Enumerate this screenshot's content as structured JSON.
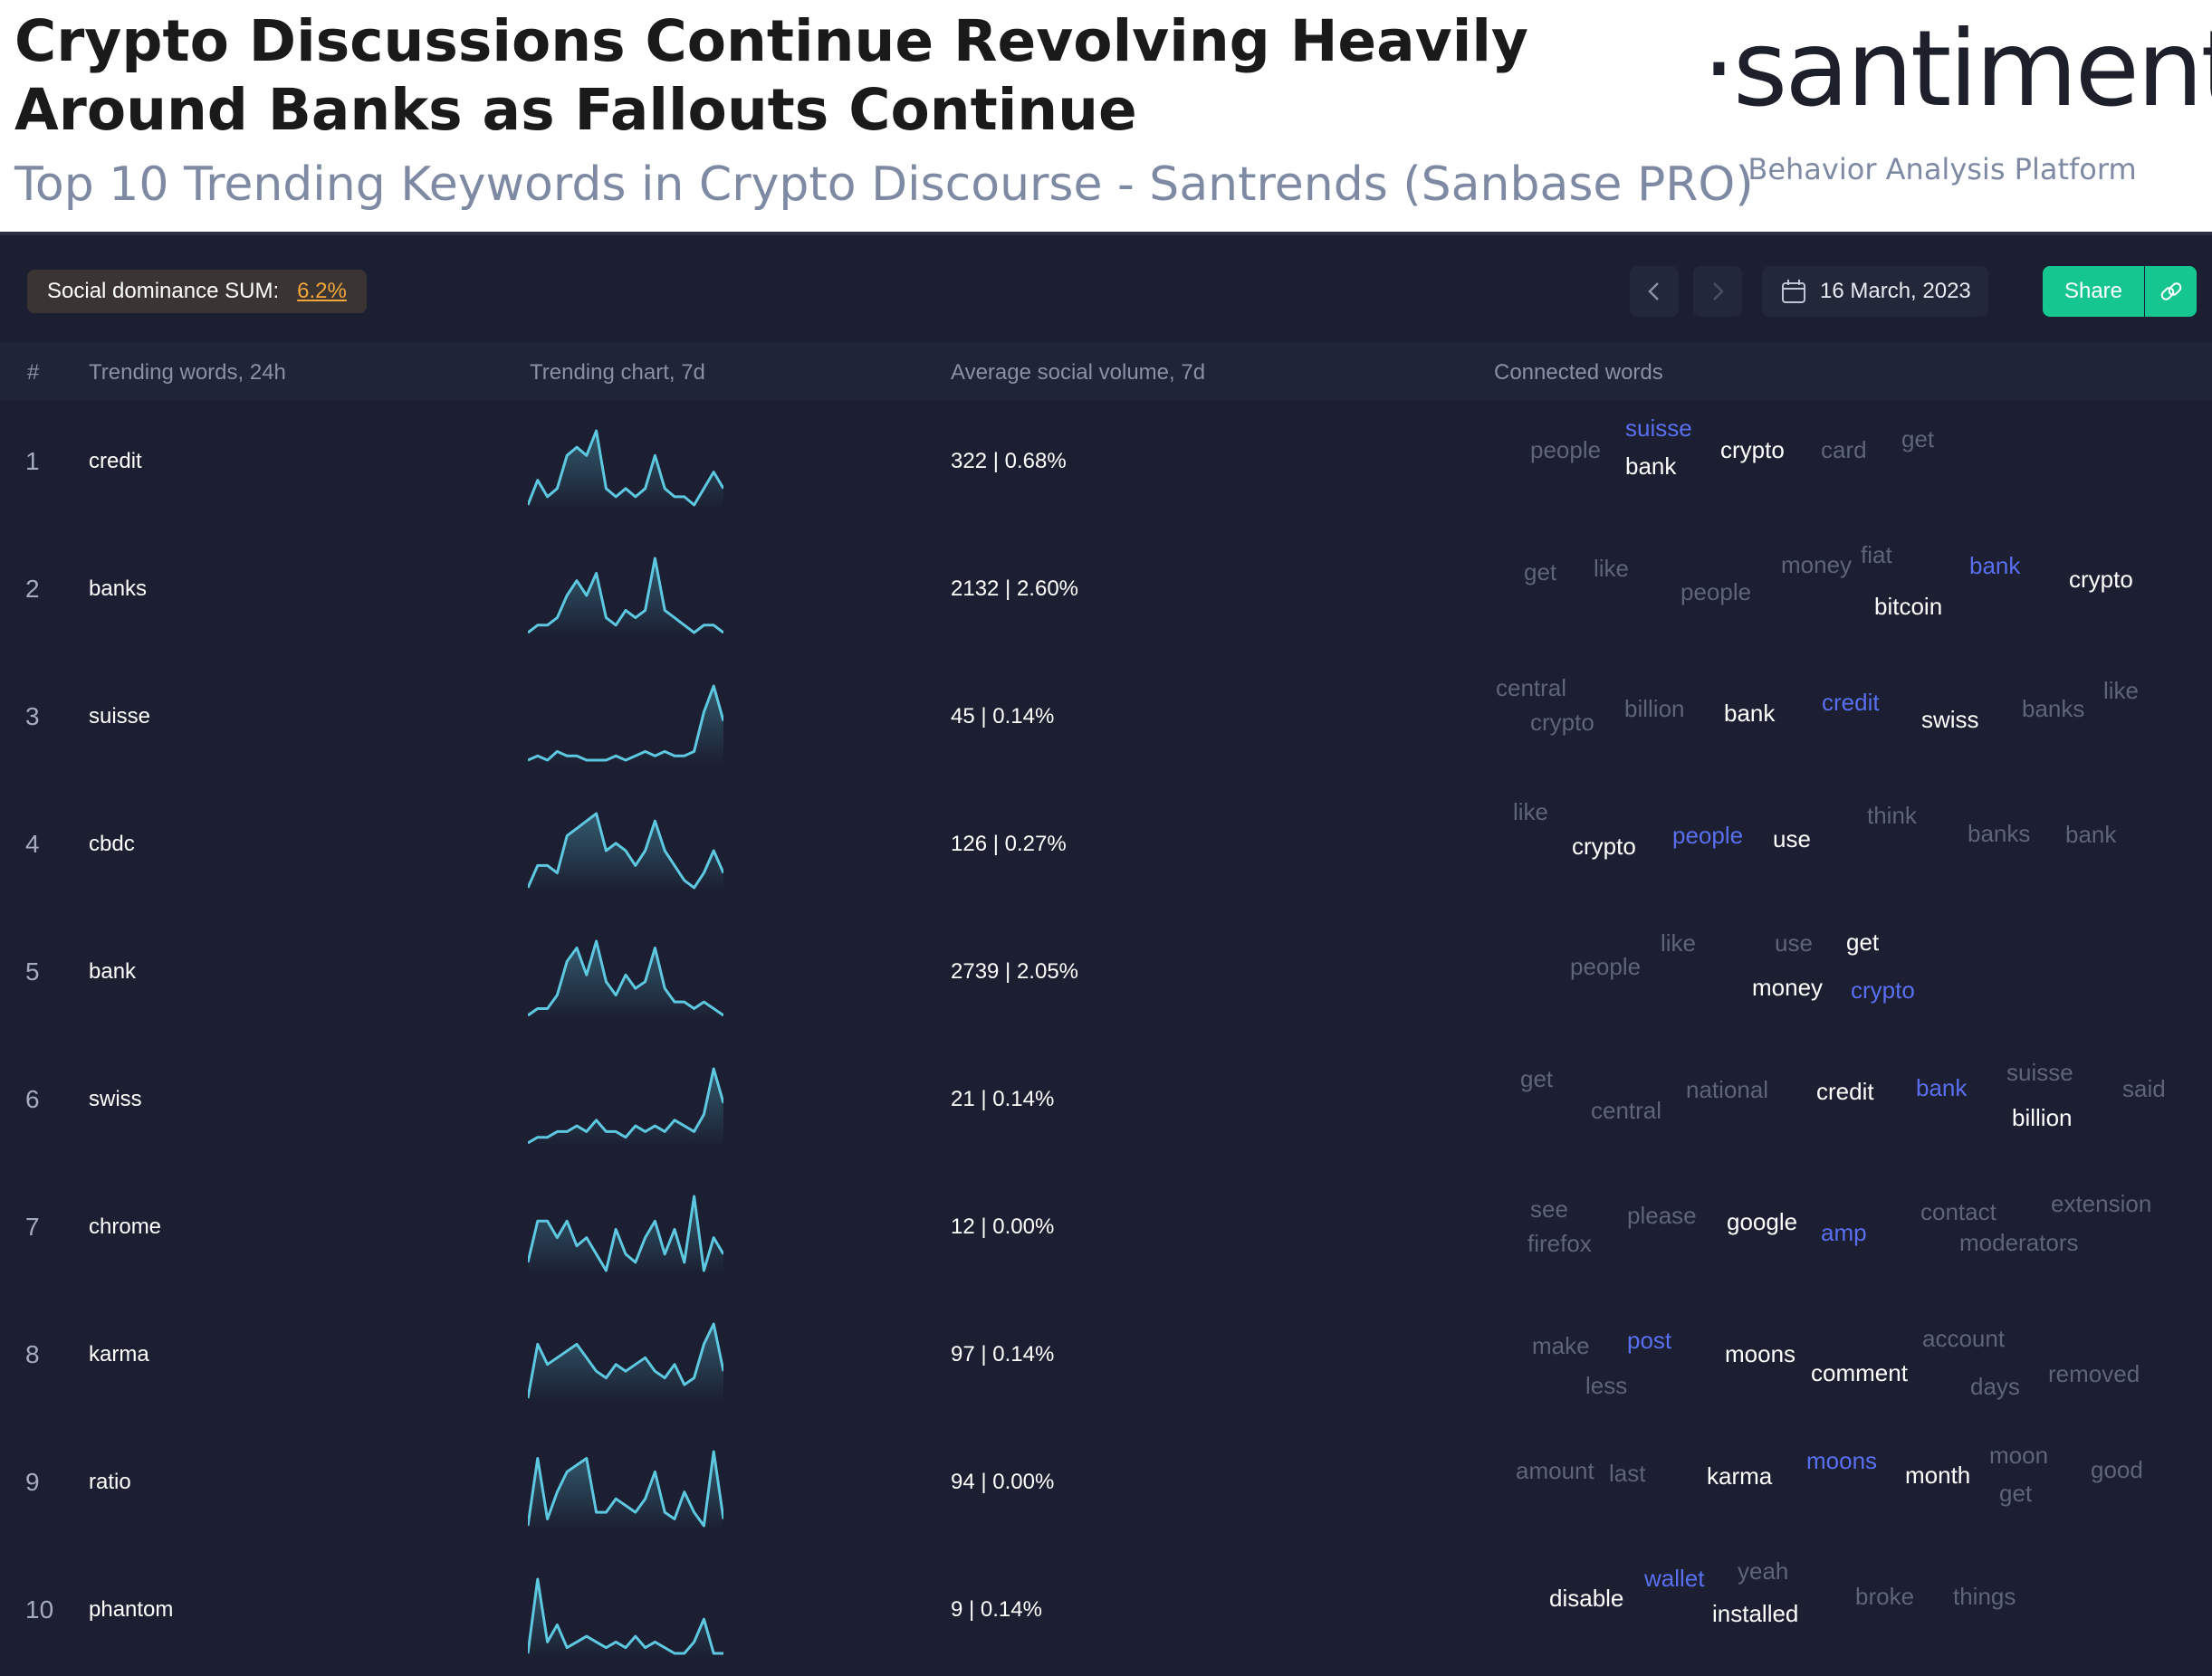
{
  "headline": "Crypto Discussions Continue Revolving Heavily Around Banks as Fallouts Continue",
  "subtitle": "Top 10 Trending Keywords in Crypto Discourse - Santrends (Sanbase PRO)",
  "brand": {
    "name": "·santiment·",
    "tagline": "Behavior Analysis Platform"
  },
  "toolbar": {
    "dominance_label": "Social dominance SUM:",
    "dominance_value": "6.2%",
    "date": "16 March, 2023",
    "share_label": "Share"
  },
  "columns": {
    "index": "#",
    "word": "Trending words, 24h",
    "chart": "Trending chart, 7d",
    "volume": "Average social volume, 7d",
    "connected": "Connected words"
  },
  "colors": {
    "background": "#1b1f31",
    "accent_green": "#15c690",
    "dominance_orange": "#f2a53a",
    "sparkline": "#5ec8e0",
    "connected_blue": "#5a6ff0"
  },
  "rows": [
    {
      "rank": "1",
      "word": "credit",
      "volume": "322 | 0.68%",
      "spark": [
        2,
        5,
        3,
        4,
        8,
        9,
        8,
        11,
        4,
        3,
        4,
        3,
        4,
        8,
        4,
        3,
        3,
        2,
        4,
        6,
        4
      ],
      "connected": [
        {
          "text": "people",
          "style": "dim"
        },
        {
          "text": "suisse",
          "style": "blue"
        },
        {
          "text": "bank",
          "style": "hi"
        },
        {
          "text": "crypto",
          "style": "hi"
        },
        {
          "text": "card",
          "style": "dim"
        },
        {
          "text": "get",
          "style": "dim"
        }
      ]
    },
    {
      "rank": "2",
      "word": "banks",
      "volume": "2132 | 2.60%",
      "spark": [
        1,
        2,
        2,
        3,
        6,
        8,
        6,
        9,
        3,
        2,
        4,
        3,
        4,
        11,
        4,
        3,
        2,
        1,
        2,
        2,
        1
      ],
      "connected": [
        {
          "text": "get",
          "style": "dim"
        },
        {
          "text": "like",
          "style": "dim"
        },
        {
          "text": "people",
          "style": "dim"
        },
        {
          "text": "money",
          "style": "dim"
        },
        {
          "text": "fiat",
          "style": "dim"
        },
        {
          "text": "bitcoin",
          "style": "hi"
        },
        {
          "text": "bank",
          "style": "blue"
        },
        {
          "text": "crypto",
          "style": "hi"
        }
      ]
    },
    {
      "rank": "3",
      "word": "suisse",
      "volume": "45 | 0.14%",
      "spark": [
        1,
        2,
        1,
        3,
        2,
        2,
        1,
        1,
        1,
        2,
        1,
        2,
        3,
        2,
        3,
        2,
        2,
        3,
        12,
        18,
        10
      ],
      "connected": [
        {
          "text": "central",
          "style": "dim"
        },
        {
          "text": "crypto",
          "style": "dim"
        },
        {
          "text": "billion",
          "style": "dim"
        },
        {
          "text": "bank",
          "style": "hi"
        },
        {
          "text": "credit",
          "style": "blue"
        },
        {
          "text": "swiss",
          "style": "hi"
        },
        {
          "text": "banks",
          "style": "dim"
        },
        {
          "text": "like",
          "style": "dim"
        }
      ]
    },
    {
      "rank": "4",
      "word": "cbdc",
      "volume": "126 | 0.27%",
      "spark": [
        1,
        4,
        4,
        3,
        8,
        9,
        10,
        11,
        6,
        7,
        6,
        4,
        6,
        10,
        6,
        4,
        2,
        1,
        3,
        6,
        3
      ],
      "connected": [
        {
          "text": "like",
          "style": "dim"
        },
        {
          "text": "crypto",
          "style": "hi"
        },
        {
          "text": "people",
          "style": "blue"
        },
        {
          "text": "use",
          "style": "hi"
        },
        {
          "text": "think",
          "style": "dim"
        },
        {
          "text": "banks",
          "style": "dim"
        },
        {
          "text": "bank",
          "style": "dim"
        }
      ]
    },
    {
      "rank": "5",
      "word": "bank",
      "volume": "2739 | 2.05%",
      "spark": [
        1,
        2,
        2,
        4,
        9,
        11,
        7,
        12,
        6,
        4,
        7,
        5,
        6,
        11,
        5,
        3,
        3,
        2,
        3,
        2,
        1
      ],
      "connected": [
        {
          "text": "people",
          "style": "dim"
        },
        {
          "text": "like",
          "style": "dim"
        },
        {
          "text": "use",
          "style": "dim"
        },
        {
          "text": "get",
          "style": "hi"
        },
        {
          "text": "money",
          "style": "hi"
        },
        {
          "text": "crypto",
          "style": "blue"
        }
      ]
    },
    {
      "rank": "6",
      "word": "swiss",
      "volume": "21 | 0.14%",
      "spark": [
        1,
        2,
        2,
        3,
        3,
        4,
        3,
        5,
        3,
        3,
        2,
        4,
        3,
        4,
        3,
        5,
        4,
        3,
        6,
        14,
        8
      ],
      "connected": [
        {
          "text": "get",
          "style": "dim"
        },
        {
          "text": "central",
          "style": "dim"
        },
        {
          "text": "national",
          "style": "dim"
        },
        {
          "text": "credit",
          "style": "hi"
        },
        {
          "text": "bank",
          "style": "blue"
        },
        {
          "text": "suisse",
          "style": "dim"
        },
        {
          "text": "billion",
          "style": "hi"
        },
        {
          "text": "said",
          "style": "dim"
        }
      ]
    },
    {
      "rank": "7",
      "word": "chrome",
      "volume": "12 | 0.00%",
      "spark": [
        2,
        7,
        7,
        5,
        7,
        4,
        5,
        3,
        1,
        6,
        3,
        2,
        5,
        7,
        3,
        6,
        2,
        10,
        1,
        5,
        3
      ],
      "connected": [
        {
          "text": "see",
          "style": "dim"
        },
        {
          "text": "firefox",
          "style": "dim"
        },
        {
          "text": "please",
          "style": "dim"
        },
        {
          "text": "google",
          "style": "hi"
        },
        {
          "text": "amp",
          "style": "blue"
        },
        {
          "text": "contact",
          "style": "dim"
        },
        {
          "text": "moderators",
          "style": "dim"
        },
        {
          "text": "extension",
          "style": "dim"
        }
      ]
    },
    {
      "rank": "8",
      "word": "karma",
      "volume": "97 | 0.14%",
      "spark": [
        1,
        9,
        6,
        7,
        8,
        9,
        7,
        5,
        4,
        6,
        5,
        6,
        7,
        5,
        4,
        6,
        3,
        4,
        9,
        12,
        5
      ],
      "connected": [
        {
          "text": "make",
          "style": "dim"
        },
        {
          "text": "less",
          "style": "dim"
        },
        {
          "text": "post",
          "style": "blue"
        },
        {
          "text": "moons",
          "style": "hi"
        },
        {
          "text": "comment",
          "style": "hi"
        },
        {
          "text": "account",
          "style": "dim"
        },
        {
          "text": "days",
          "style": "dim"
        },
        {
          "text": "removed",
          "style": "dim"
        }
      ]
    },
    {
      "rank": "9",
      "word": "ratio",
      "volume": "94 | 0.00%",
      "spark": [
        1,
        11,
        2,
        6,
        9,
        10,
        11,
        3,
        3,
        5,
        4,
        3,
        5,
        9,
        3,
        2,
        6,
        3,
        1,
        12,
        2
      ],
      "connected": [
        {
          "text": "amount",
          "style": "dim"
        },
        {
          "text": "last",
          "style": "dim"
        },
        {
          "text": "karma",
          "style": "hi"
        },
        {
          "text": "moons",
          "style": "blue"
        },
        {
          "text": "month",
          "style": "hi"
        },
        {
          "text": "moon",
          "style": "dim"
        },
        {
          "text": "get",
          "style": "dim"
        },
        {
          "text": "good",
          "style": "dim"
        }
      ]
    },
    {
      "rank": "10",
      "word": "phantom",
      "volume": "9 | 0.14%",
      "spark": [
        1,
        14,
        3,
        6,
        2,
        3,
        4,
        3,
        2,
        3,
        2,
        4,
        2,
        3,
        2,
        1,
        1,
        3,
        7,
        1,
        1
      ],
      "connected": [
        {
          "text": "disable",
          "style": "hi"
        },
        {
          "text": "wallet",
          "style": "blue"
        },
        {
          "text": "installed",
          "style": "hi"
        },
        {
          "text": "yeah",
          "style": "dim"
        },
        {
          "text": "broke",
          "style": "dim"
        },
        {
          "text": "things",
          "style": "dim"
        }
      ]
    }
  ]
}
